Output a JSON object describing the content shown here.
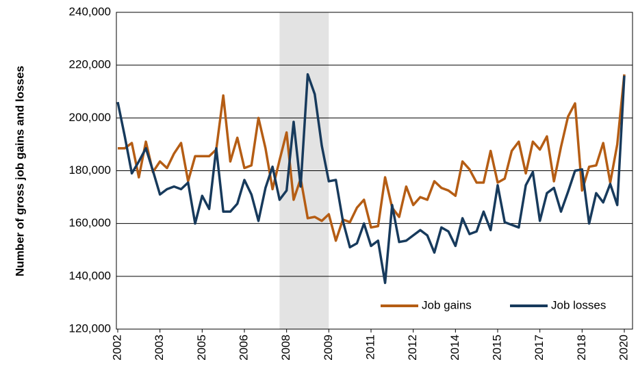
{
  "chart_data": {
    "type": "line",
    "y_label": "Number of gross job gains and losses",
    "categories": [
      "2002",
      null,
      null,
      null,
      null,
      null,
      "2003",
      null,
      null,
      null,
      null,
      null,
      "2005",
      null,
      null,
      null,
      null,
      null,
      "2006",
      null,
      null,
      null,
      null,
      null,
      "2008",
      null,
      null,
      null,
      null,
      null,
      "2009",
      null,
      null,
      null,
      null,
      null,
      "2011",
      null,
      null,
      null,
      null,
      null,
      "2012",
      null,
      null,
      null,
      null,
      null,
      "2014",
      null,
      null,
      null,
      null,
      null,
      "2015",
      null,
      null,
      null,
      null,
      null,
      "2017",
      null,
      null,
      null,
      null,
      null,
      "2018",
      null,
      null,
      null,
      null,
      null,
      "2020"
    ],
    "series": [
      {
        "name": "Job gains",
        "color": "#b55d14",
        "values": [
          188500,
          188500,
          190500,
          177500,
          191000,
          179500,
          183500,
          181000,
          186500,
          190500,
          176000,
          185500,
          185500,
          185500,
          188000,
          208500,
          183500,
          192500,
          181000,
          182000,
          200000,
          188500,
          173000,
          184000,
          194500,
          169000,
          177000,
          162000,
          162500,
          161000,
          163500,
          153500,
          161500,
          160500,
          166000,
          169000,
          158500,
          159000,
          177500,
          166000,
          162500,
          174000,
          167000,
          170000,
          169000,
          176000,
          173500,
          172500,
          170500,
          183500,
          180500,
          175500,
          175500,
          187500,
          175500,
          177000,
          187500,
          191000,
          179000,
          191000,
          188000,
          193000,
          176000,
          189000,
          200500,
          205500,
          172500,
          181500,
          182000,
          190500,
          175500,
          190000,
          216500
        ]
      },
      {
        "name": "Job losses",
        "color": "#173a5c",
        "values": [
          206000,
          193000,
          179000,
          183500,
          188500,
          180000,
          171000,
          173000,
          174000,
          173000,
          175500,
          160000,
          170500,
          165500,
          188500,
          164500,
          164500,
          167500,
          176500,
          171000,
          161000,
          173500,
          181500,
          169000,
          172500,
          198500,
          174000,
          216500,
          209000,
          189500,
          176000,
          176500,
          161000,
          151000,
          152500,
          160000,
          151500,
          153500,
          137500,
          167000,
          153000,
          153500,
          155500,
          157500,
          155500,
          149000,
          158500,
          157000,
          151500,
          162000,
          156000,
          157000,
          164500,
          157500,
          174500,
          160500,
          159500,
          158500,
          174500,
          179500,
          161000,
          171500,
          173500,
          164500,
          172000,
          180000,
          180500,
          160000,
          171500,
          168000,
          175000,
          167000,
          216000
        ]
      }
    ],
    "ylim": [
      120000,
      240000
    ],
    "yticks": [
      {
        "value": 120000,
        "label": "120,000"
      },
      {
        "value": 140000,
        "label": "140,000"
      },
      {
        "value": 160000,
        "label": "160,000"
      },
      {
        "value": 180000,
        "label": "180,000"
      },
      {
        "value": 200000,
        "label": "200,000"
      },
      {
        "value": 220000,
        "label": "220,000"
      },
      {
        "value": 240000,
        "label": "240,000"
      }
    ],
    "grid": true,
    "recession": [
      23,
      30
    ],
    "recession_color": "#e3e3e3",
    "legend": "lower right"
  }
}
